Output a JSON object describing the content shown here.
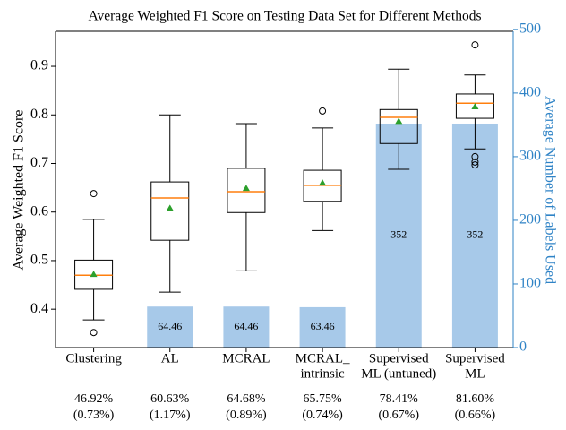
{
  "chart_data": {
    "type": "box",
    "title": "Average Weighted F1 Score on Testing Data Set for Different Methods",
    "ylabel": "Average Weighted F1 Score",
    "y2label": "Average Number of Labels Used",
    "categories": [
      [
        "Clustering"
      ],
      [
        "AL"
      ],
      [
        "MCRAL"
      ],
      [
        "MCRAL_",
        "intrinsic"
      ],
      [
        "Supervised",
        "ML (untuned)"
      ],
      [
        "Supervised",
        "ML"
      ]
    ],
    "boxes": [
      {
        "whislo": 0.378,
        "q1": 0.441,
        "med": 0.47,
        "q3": 0.501,
        "whishi": 0.585,
        "mean": 0.472,
        "outliers": [
          0.638,
          0.352
        ]
      },
      {
        "whislo": 0.435,
        "q1": 0.542,
        "med": 0.629,
        "q3": 0.662,
        "whishi": 0.8,
        "mean": 0.608,
        "outliers": []
      },
      {
        "whislo": 0.479,
        "q1": 0.599,
        "med": 0.642,
        "q3": 0.69,
        "whishi": 0.782,
        "mean": 0.649,
        "outliers": []
      },
      {
        "whislo": 0.562,
        "q1": 0.622,
        "med": 0.655,
        "q3": 0.686,
        "whishi": 0.773,
        "mean": 0.66,
        "outliers": [
          0.808
        ]
      },
      {
        "whislo": 0.688,
        "q1": 0.741,
        "med": 0.795,
        "q3": 0.811,
        "whishi": 0.894,
        "mean": 0.787,
        "outliers": []
      },
      {
        "whislo": 0.73,
        "q1": 0.793,
        "med": 0.824,
        "q3": 0.843,
        "whishi": 0.882,
        "mean": 0.817,
        "outliers": [
          0.944,
          0.714,
          0.703,
          0.697
        ]
      }
    ],
    "bars": {
      "axis": "y2",
      "color": "#a7c9e9",
      "values": [
        null,
        64.46,
        64.46,
        63.46,
        352,
        352
      ]
    },
    "summary": [
      {
        "mean": "46.92%",
        "std": "(0.73%)"
      },
      {
        "mean": "60.63%",
        "std": "(1.17%)"
      },
      {
        "mean": "64.68%",
        "std": "(0.89%)"
      },
      {
        "mean": "65.75%",
        "std": "(0.74%)"
      },
      {
        "mean": "78.41%",
        "std": "(0.67%)"
      },
      {
        "mean": "81.60%",
        "std": "(0.66%)"
      }
    ],
    "ylim": [
      0.321,
      0.972
    ],
    "yticks": [
      0.4,
      0.5,
      0.6,
      0.7,
      0.8,
      0.9
    ],
    "y2lim": [
      0,
      497
    ],
    "y2ticks": [
      0,
      100,
      200,
      300,
      400,
      500
    ],
    "y2color": "#2f83c6",
    "median_color": "#ff7f0e",
    "mean_color": "#2ca02c"
  }
}
